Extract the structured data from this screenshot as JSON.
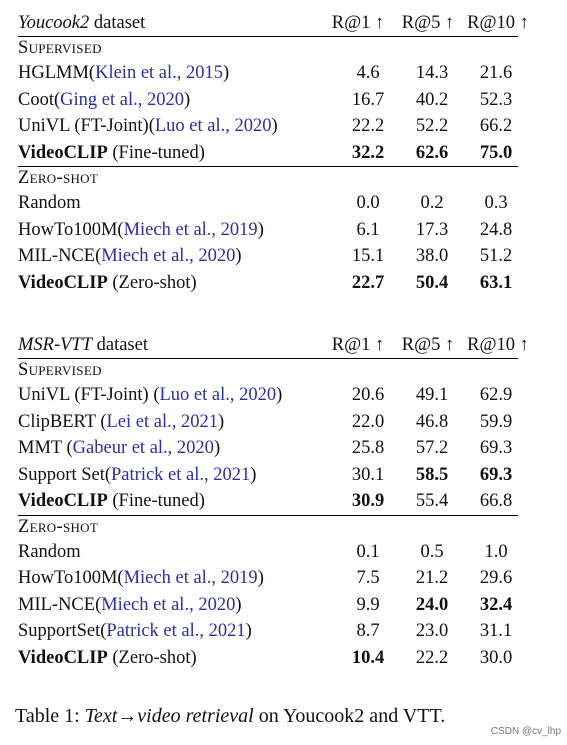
{
  "table1": {
    "header": {
      "dataset_name": "Youcook2",
      "dataset_suffix": "dataset",
      "cols": [
        "R@1 ↑",
        "R@5 ↑",
        "R@10 ↑"
      ]
    },
    "supervised_label": "Supervised",
    "supervised_rows": [
      {
        "method": "HGLMM(",
        "cite": "Klein et al., 2015",
        "close": ")",
        "r1": "4.6",
        "r5": "14.3",
        "r10": "21.6"
      },
      {
        "method": "Coot(",
        "cite": "Ging et al., 2020",
        "close": ")",
        "r1": "16.7",
        "r5": "40.2",
        "r10": "52.3"
      },
      {
        "method": "UniVL (FT-Joint)(",
        "cite": "Luo et al., 2020",
        "close": ")",
        "r1": "22.2",
        "r5": "52.2",
        "r10": "66.2"
      }
    ],
    "supervised_ours": {
      "method": "VideoCLIP",
      "suffix": " (Fine-tuned)",
      "r1": "32.2",
      "r5": "62.6",
      "r10": "75.0"
    },
    "zeroshot_label": "Zero-shot",
    "zeroshot_rows": [
      {
        "method": "Random",
        "cite": "",
        "close": "",
        "r1": "0.0",
        "r5": "0.2",
        "r10": "0.3"
      },
      {
        "method": "HowTo100M(",
        "cite": "Miech et al., 2019",
        "close": ")",
        "r1": "6.1",
        "r5": "17.3",
        "r10": "24.8"
      },
      {
        "method": "MIL-NCE(",
        "cite": "Miech et al., 2020",
        "close": ")",
        "r1": "15.1",
        "r5": "38.0",
        "r10": "51.2"
      }
    ],
    "zeroshot_ours": {
      "method": "VideoCLIP",
      "suffix": " (Zero-shot)",
      "r1": "22.7",
      "r5": "50.4",
      "r10": "63.1"
    }
  },
  "table2": {
    "header": {
      "dataset_name": "MSR-VTT",
      "dataset_suffix": "dataset",
      "cols": [
        "R@1 ↑",
        "R@5 ↑",
        "R@10 ↑"
      ]
    },
    "supervised_label": "Supervised",
    "supervised_rows": [
      {
        "method": "UniVL (FT-Joint) (",
        "cite": "Luo et al., 2020",
        "close": ")",
        "r1": "20.6",
        "r5": "49.1",
        "r10": "62.9"
      },
      {
        "method": "ClipBERT (",
        "cite": "Lei et al., 2021",
        "close": ")",
        "r1": "22.0",
        "r5": "46.8",
        "r10": "59.9"
      },
      {
        "method": "MMT (",
        "cite": "Gabeur et al., 2020",
        "close": ")",
        "r1": "25.8",
        "r5": "57.2",
        "r10": "69.3"
      },
      {
        "method": "Support Set(",
        "cite": "Patrick et al., 2021",
        "close": ")",
        "r1": "30.1",
        "r5": "58.5",
        "r10": "69.3"
      }
    ],
    "supervised_ours": {
      "method": "VideoCLIP",
      "suffix": " (Fine-tuned)",
      "r1": "30.9",
      "r5": "55.4",
      "r10": "66.8"
    },
    "zeroshot_label": "Zero-shot",
    "zeroshot_rows": [
      {
        "method": "Random",
        "cite": "",
        "close": "",
        "r1": "0.1",
        "r5": "0.5",
        "r10": "1.0"
      },
      {
        "method": "HowTo100M(",
        "cite": "Miech et al., 2019",
        "close": ")",
        "r1": "7.5",
        "r5": "21.2",
        "r10": "29.6"
      },
      {
        "method": "MIL-NCE(",
        "cite": "Miech et al., 2020",
        "close": ")",
        "r1": "9.9",
        "r5": "24.0",
        "r10": "32.4"
      },
      {
        "method": "SupportSet(",
        "cite": "Patrick et al., 2021",
        "close": ")",
        "r1": "8.7",
        "r5": "23.0",
        "r10": "31.1"
      }
    ],
    "zeroshot_ours": {
      "method": "VideoCLIP",
      "suffix": " (Zero-shot)",
      "r1": "10.4",
      "r5": "22.2",
      "r10": "30.0"
    }
  },
  "caption": {
    "prefix": "Table 1: ",
    "italic": "Text→video retrieval",
    "suffix": " on Youcook2 and VTT."
  },
  "watermark": "CSDN @cv_lhp"
}
